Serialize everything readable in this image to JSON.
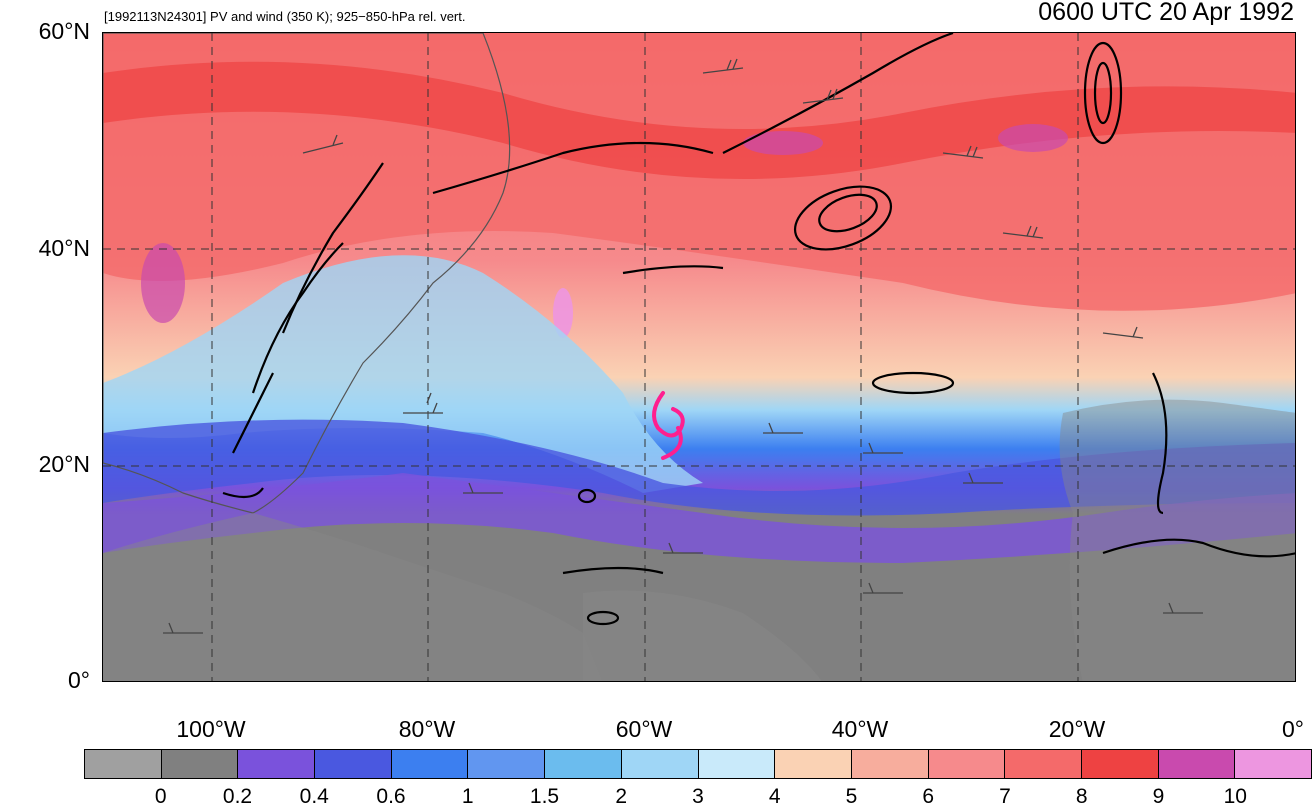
{
  "header": {
    "subtitle": "[1992113N24301] PV and wind (350 K); 925−850-hPa rel. vert.",
    "time": "0600 UTC 20 Apr 1992"
  },
  "map": {
    "lat_labels": [
      "60°N",
      "40°N",
      "20°N",
      "0°"
    ],
    "lon_labels": [
      "100°W",
      "80°W",
      "60°W",
      "40°W",
      "20°W",
      "0°"
    ],
    "storm_symbol": "tropical-cyclone-icon",
    "storm_color": "#ff1f8f",
    "land_color": "#888888",
    "contour_color": "#000000"
  },
  "legend": {
    "colors": [
      "#a0a0a0",
      "#808080",
      "#7a52dc",
      "#4a58e0",
      "#3c7ff0",
      "#6196f0",
      "#6bbcee",
      "#9fd6f6",
      "#c9eafa",
      "#fad2b4",
      "#f7ad9d",
      "#f68a8c",
      "#f46a6a",
      "#ee4242",
      "#c94aae",
      "#ed96e0"
    ],
    "ticks": [
      "0",
      "0.2",
      "0.4",
      "0.6",
      "1",
      "1.5",
      "2",
      "3",
      "4",
      "5",
      "6",
      "7",
      "8",
      "9",
      "10"
    ]
  }
}
